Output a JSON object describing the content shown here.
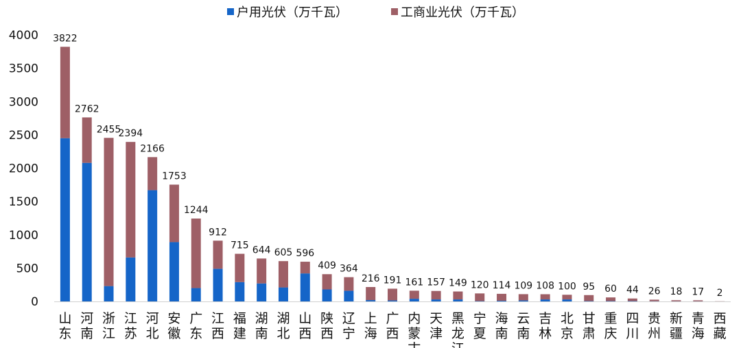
{
  "chart_data": {
    "type": "bar",
    "stacked": true,
    "categories": [
      "山东",
      "河南",
      "浙江",
      "江苏",
      "河北",
      "安徽",
      "广东",
      "江西",
      "福建",
      "湖南",
      "湖北",
      "山西",
      "陕西",
      "辽宁",
      "上海",
      "广西",
      "内蒙古",
      "天津",
      "黑龙江",
      "宁夏",
      "海南",
      "云南",
      "吉林",
      "北京",
      "甘肃",
      "重庆",
      "四川",
      "贵州",
      "新疆",
      "青海",
      "西藏"
    ],
    "series": [
      {
        "name": "户用光伏（万千瓦）",
        "color": "#1565C8",
        "values": [
          2450,
          2080,
          230,
          660,
          1670,
          890,
          200,
          490,
          290,
          270,
          210,
          420,
          180,
          160,
          20,
          15,
          40,
          30,
          30,
          5,
          10,
          15,
          30,
          30,
          5,
          5,
          5,
          3,
          2,
          2,
          0
        ]
      },
      {
        "name": "工商业光伏（万千瓦）",
        "color": "#9E5F66",
        "values": [
          1372,
          682,
          2225,
          1734,
          496,
          863,
          1044,
          422,
          425,
          374,
          395,
          176,
          229,
          204,
          196,
          176,
          121,
          127,
          119,
          115,
          104,
          94,
          78,
          70,
          90,
          55,
          39,
          23,
          16,
          15,
          2
        ]
      }
    ],
    "totals": [
      3822,
      2762,
      2455,
      2394,
      2166,
      1753,
      1244,
      912,
      715,
      644,
      605,
      596,
      409,
      364,
      216,
      191,
      161,
      157,
      149,
      120,
      114,
      109,
      108,
      100,
      95,
      60,
      44,
      26,
      18,
      17,
      2
    ],
    "yticks": [
      0,
      500,
      1000,
      1500,
      2000,
      2500,
      3000,
      3500,
      4000
    ],
    "ylim": [
      0,
      4000
    ],
    "legend_position": "top",
    "grid": false
  }
}
